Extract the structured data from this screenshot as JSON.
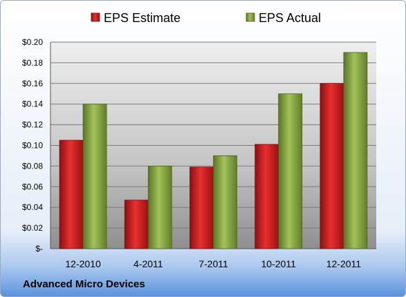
{
  "chart_data": {
    "type": "bar",
    "categories": [
      "12-2010",
      "4-2011",
      "7-2011",
      "10-2011",
      "12-2011"
    ],
    "series": [
      {
        "name": "EPS Estimate",
        "values": [
          0.105,
          0.047,
          0.079,
          0.101,
          0.16
        ],
        "color": "#d42020"
      },
      {
        "name": "EPS Actual",
        "values": [
          0.14,
          0.08,
          0.09,
          0.15,
          0.19
        ],
        "color": "#8fae45"
      }
    ],
    "y_ticks": [
      {
        "value": 0.0,
        "label": "$-"
      },
      {
        "value": 0.02,
        "label": "$0.02"
      },
      {
        "value": 0.04,
        "label": "$0.04"
      },
      {
        "value": 0.06,
        "label": "$0.06"
      },
      {
        "value": 0.08,
        "label": "$0.08"
      },
      {
        "value": 0.1,
        "label": "$0.10"
      },
      {
        "value": 0.12,
        "label": "$0.12"
      },
      {
        "value": 0.14,
        "label": "$0.14"
      },
      {
        "value": 0.16,
        "label": "$0.16"
      },
      {
        "value": 0.18,
        "label": "$0.18"
      },
      {
        "value": 0.2,
        "label": "$0.20"
      }
    ],
    "ylim": [
      0,
      0.2
    ],
    "grid": true,
    "legend_position": "top",
    "footer": "Advanced Micro Devices"
  }
}
